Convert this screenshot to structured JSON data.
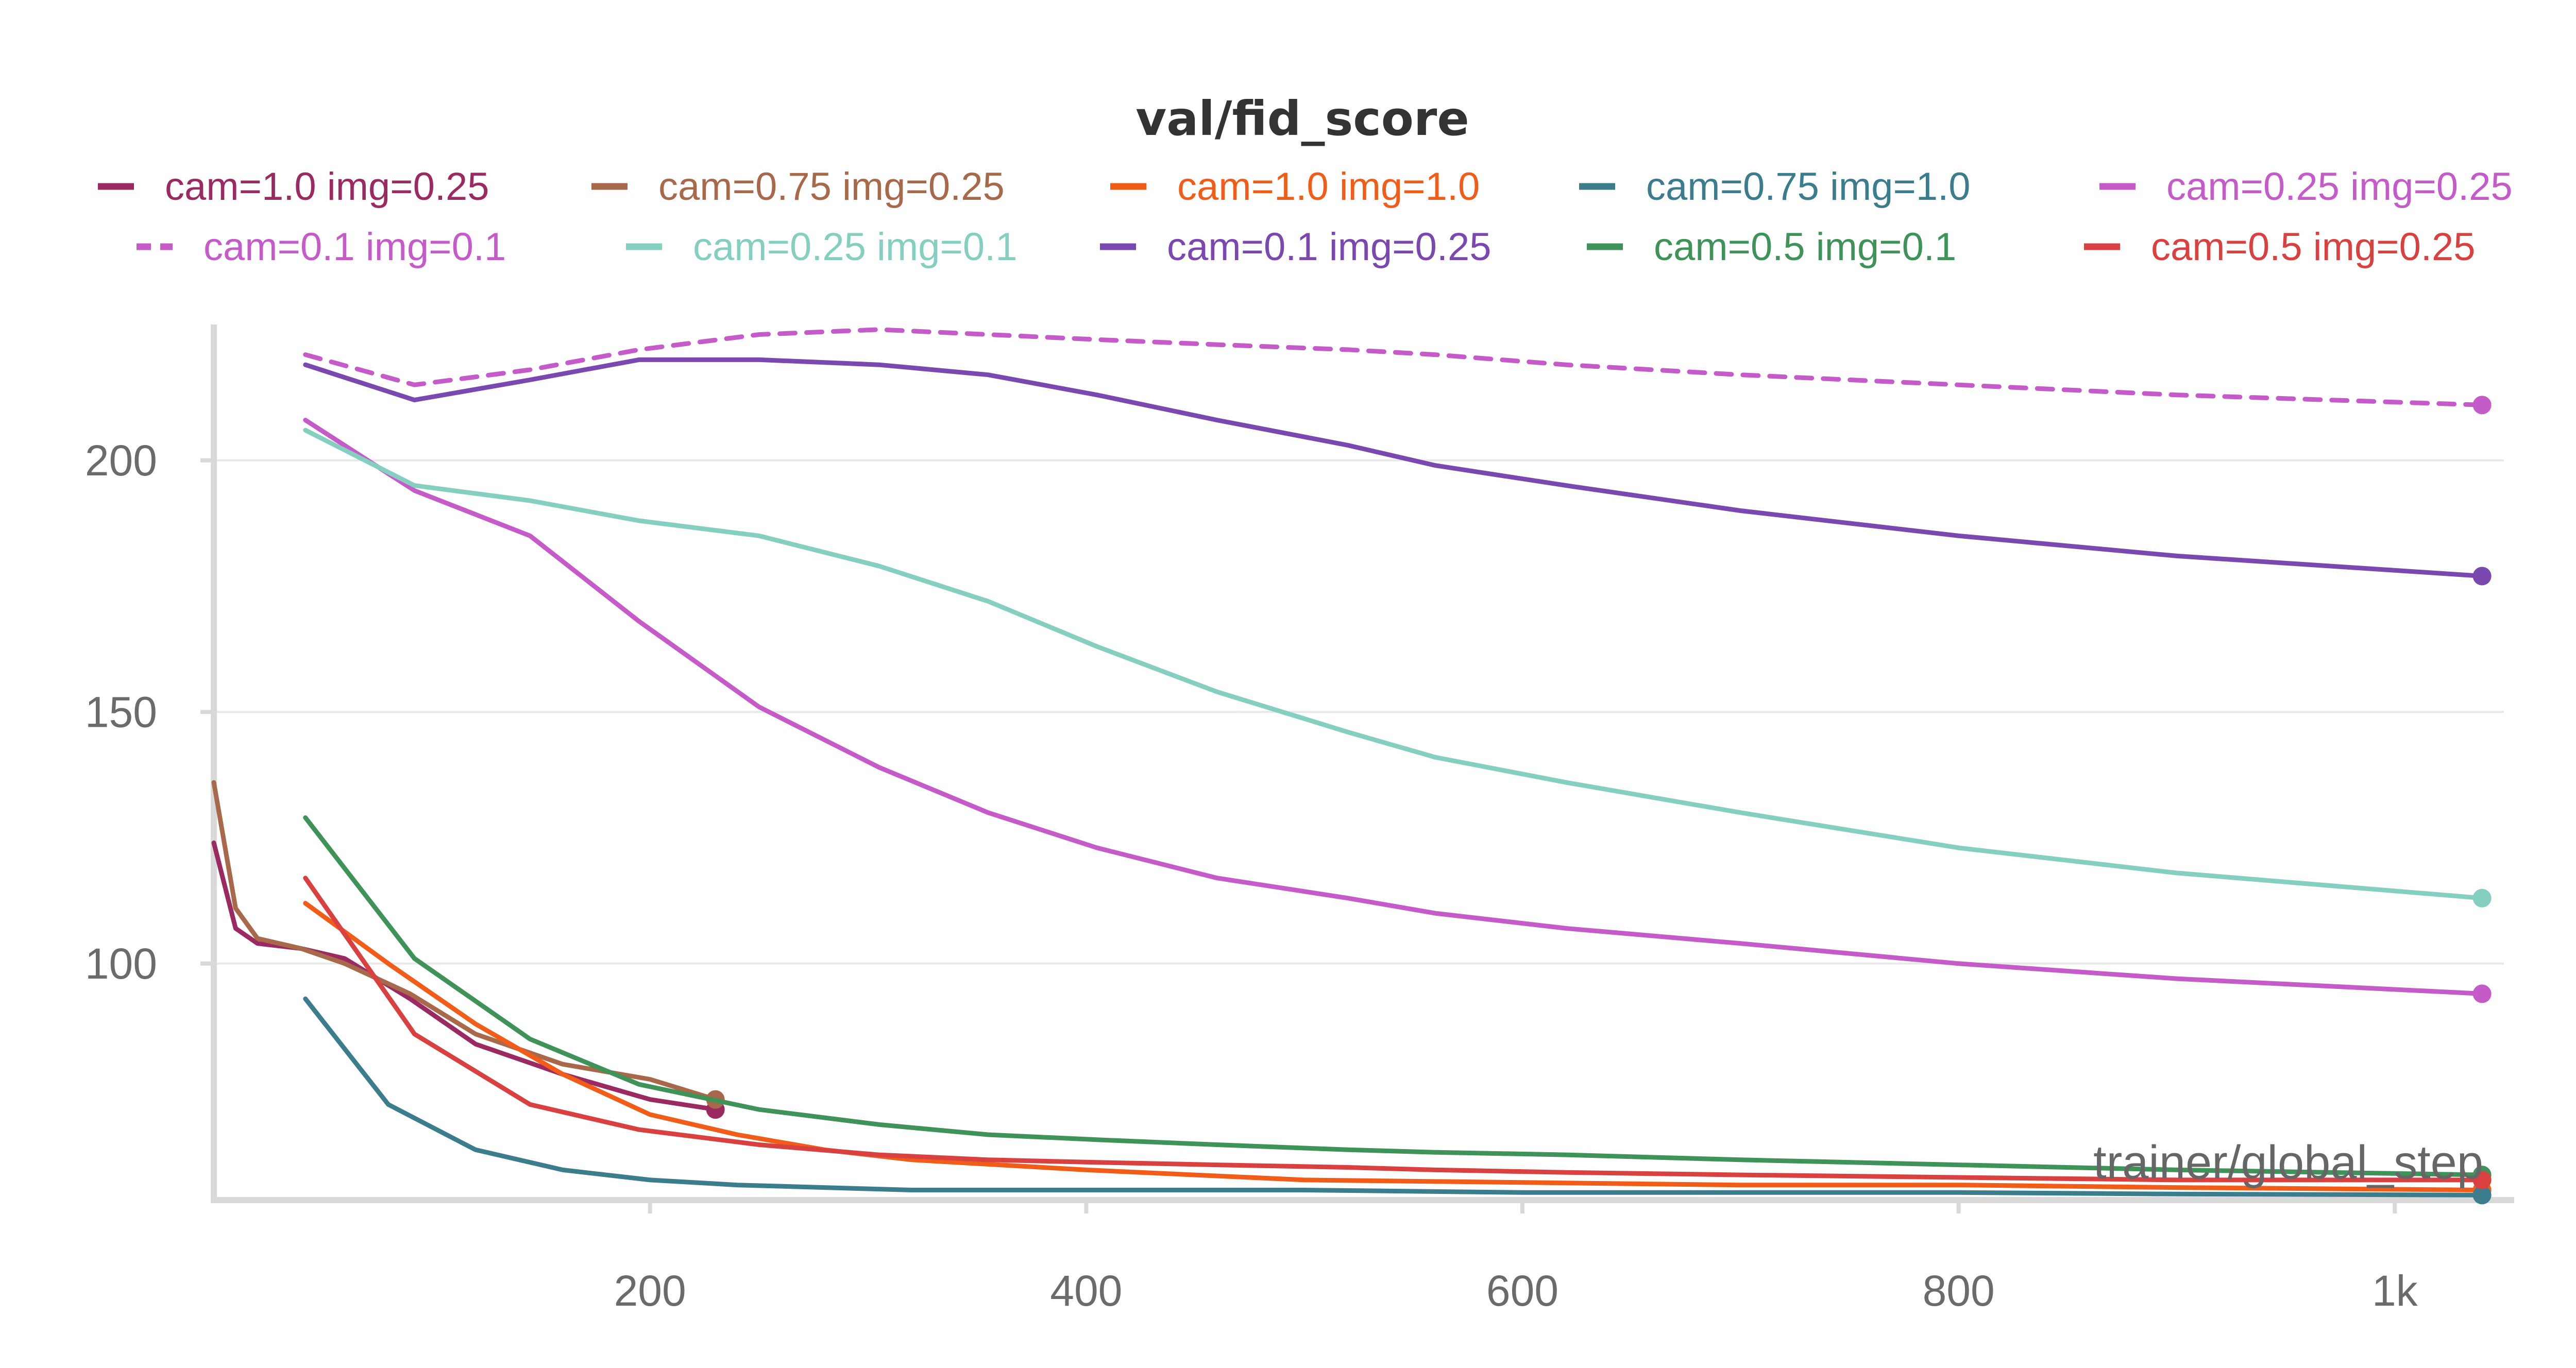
{
  "chart_data": {
    "type": "line",
    "title": "val/fid_score",
    "xlabel": "trainer/global_step",
    "ylabel": "",
    "xlim": [
      0,
      1050
    ],
    "ylim": [
      53,
      227
    ],
    "x_ticks": [
      200,
      400,
      600,
      800,
      1000
    ],
    "x_tick_labels": [
      "200",
      "400",
      "600",
      "800",
      "1k"
    ],
    "y_ticks": [
      100,
      150,
      200
    ],
    "y_tick_labels": [
      "100",
      "150",
      "200"
    ],
    "grid": true,
    "legend_position": "top",
    "series": [
      {
        "name": "cam=1.0 img=0.25",
        "color": "#9c2a62",
        "dashed": false,
        "x": [
          0,
          10,
          20,
          40,
          60,
          90,
          120,
          160,
          200,
          230
        ],
        "y": [
          124,
          107,
          104,
          103,
          101,
          93,
          84,
          78,
          73,
          71
        ]
      },
      {
        "name": "cam=0.75 img=0.25",
        "color": "#a8684a",
        "dashed": false,
        "x": [
          0,
          10,
          20,
          40,
          60,
          90,
          120,
          160,
          200,
          230
        ],
        "y": [
          136,
          111,
          105,
          103,
          100,
          94,
          86,
          80,
          77,
          73
        ]
      },
      {
        "name": "cam=1.0 img=1.0",
        "color": "#f25c19",
        "dashed": false,
        "x": [
          42,
          80,
          120,
          160,
          200,
          240,
          280,
          320,
          400,
          500,
          600,
          700,
          800,
          900,
          1040
        ],
        "y": [
          112,
          100,
          88,
          78,
          70,
          66,
          63,
          61,
          59,
          57,
          56.5,
          56,
          56,
          55.5,
          55
        ]
      },
      {
        "name": "cam=0.75 img=1.0",
        "color": "#3b7d8c",
        "dashed": false,
        "x": [
          42,
          80,
          120,
          160,
          200,
          240,
          280,
          320,
          400,
          500,
          600,
          700,
          800,
          900,
          1040
        ],
        "y": [
          93,
          72,
          63,
          59,
          57,
          56,
          55.5,
          55,
          55,
          55,
          54.5,
          54.5,
          54.5,
          54.2,
          54
        ]
      },
      {
        "name": "cam=0.25 img=0.25",
        "color": "#c55bc9",
        "dashed": false,
        "x": [
          42,
          92,
          145,
          195,
          250,
          305,
          355,
          405,
          460,
          520,
          560,
          620,
          700,
          800,
          900,
          1040
        ],
        "y": [
          208,
          194,
          185,
          168,
          151,
          139,
          130,
          123,
          117,
          113,
          110,
          107,
          104,
          100,
          97,
          94
        ]
      },
      {
        "name": "cam=0.1 img=0.1",
        "color": "#c55bc9",
        "dashed": true,
        "x": [
          42,
          92,
          145,
          195,
          250,
          305,
          355,
          405,
          460,
          520,
          560,
          620,
          700,
          800,
          900,
          1040
        ],
        "y": [
          221,
          215,
          218,
          222,
          225,
          226,
          225,
          224,
          223,
          222,
          221,
          219,
          217,
          215,
          213,
          211
        ]
      },
      {
        "name": "cam=0.25 img=0.1",
        "color": "#85cfc0",
        "dashed": false,
        "x": [
          42,
          92,
          145,
          195,
          250,
          305,
          355,
          405,
          460,
          520,
          560,
          620,
          700,
          800,
          900,
          1040
        ],
        "y": [
          206,
          195,
          192,
          188,
          185,
          179,
          172,
          163,
          154,
          146,
          141,
          136,
          130,
          123,
          118,
          113
        ]
      },
      {
        "name": "cam=0.1 img=0.25",
        "color": "#7b48b0",
        "dashed": false,
        "x": [
          42,
          92,
          145,
          195,
          250,
          305,
          355,
          405,
          460,
          520,
          560,
          620,
          700,
          800,
          900,
          1040
        ],
        "y": [
          219,
          212,
          216,
          220,
          220,
          219,
          217,
          213,
          208,
          203,
          199,
          195,
          190,
          185,
          181,
          177
        ]
      },
      {
        "name": "cam=0.5 img=0.1",
        "color": "#3f9359",
        "dashed": false,
        "x": [
          42,
          92,
          145,
          195,
          250,
          305,
          355,
          405,
          460,
          520,
          560,
          620,
          700,
          800,
          900,
          1040
        ],
        "y": [
          129,
          101,
          85,
          76,
          71,
          68,
          66,
          65,
          64,
          63,
          62.5,
          62,
          61,
          60,
          59,
          58
        ]
      },
      {
        "name": "cam=0.5 img=0.25",
        "color": "#d94141",
        "dashed": false,
        "x": [
          42,
          92,
          145,
          195,
          250,
          305,
          355,
          405,
          460,
          520,
          560,
          620,
          700,
          800,
          900,
          1040
        ],
        "y": [
          117,
          86,
          72,
          67,
          64,
          62,
          61,
          60.5,
          60,
          59.5,
          59,
          58.5,
          58,
          57.5,
          57,
          57
        ]
      }
    ]
  }
}
